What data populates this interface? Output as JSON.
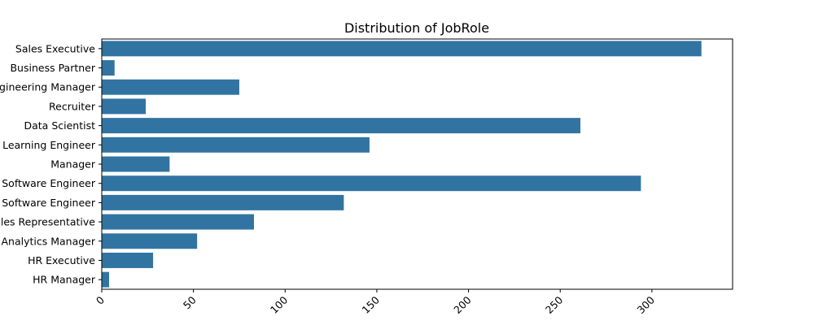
{
  "chart_data": {
    "type": "bar",
    "orientation": "horizontal",
    "title": "Distribution of JobRole",
    "xlabel": "",
    "ylabel": "",
    "categories": [
      "Sales Executive",
      "Business Partner",
      "Engineering Manager",
      "Recruiter",
      "Data Scientist",
      "Machine Learning Engineer",
      "Manager",
      "Software Engineer",
      "Senior Software Engineer",
      "Sales Representative",
      "Analytics Manager",
      "HR Executive",
      "HR Manager"
    ],
    "values": [
      327,
      7,
      75,
      24,
      261,
      146,
      37,
      294,
      132,
      83,
      52,
      28,
      4
    ],
    "xlim": [
      0,
      344
    ],
    "xticks": [
      0,
      50,
      100,
      150,
      200,
      250,
      300
    ],
    "xtick_rotation": 45,
    "grid": false,
    "color": "#3274a1"
  }
}
